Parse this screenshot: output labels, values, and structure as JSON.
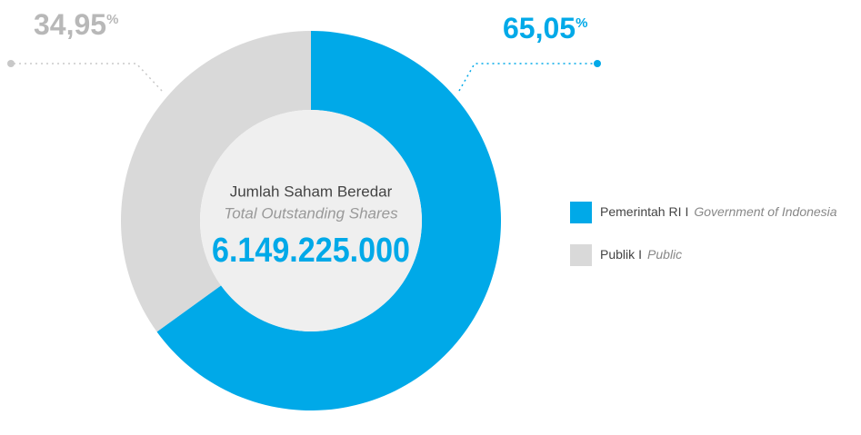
{
  "chart_data": {
    "type": "donut",
    "center_title": "Jumlah Saham Beredar",
    "center_subtitle": "Total Outstanding Shares",
    "center_value": "6.149.225.000",
    "categories": [
      "Pemerintah RI",
      "Publik"
    ],
    "translations": [
      "Government of Indonesia",
      "Public"
    ],
    "legend_separator": "I",
    "values": [
      65.05,
      34.95
    ],
    "value_labels": [
      "65,05%",
      "34,95%"
    ],
    "colors": [
      "#00a9e8",
      "#d9d9d9"
    ],
    "legend": "right"
  }
}
